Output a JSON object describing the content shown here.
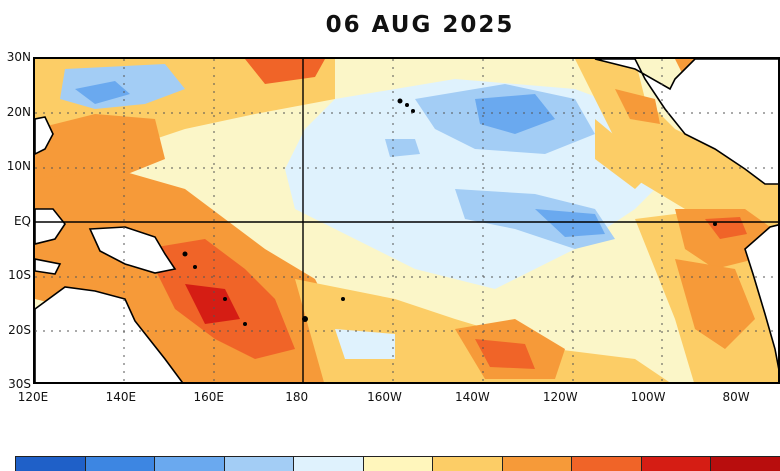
{
  "map": {
    "title": "06 AUG 2025",
    "lat_labels": [
      {
        "text": "30N",
        "lat": 30
      },
      {
        "text": "20N",
        "lat": 20
      },
      {
        "text": "10N",
        "lat": 10
      },
      {
        "text": "EQ",
        "lat": 0
      },
      {
        "text": "10S",
        "lat": -10
      },
      {
        "text": "20S",
        "lat": -20
      },
      {
        "text": "30S",
        "lat": -30
      }
    ],
    "lon_labels": [
      {
        "text": "120E",
        "lon": 120
      },
      {
        "text": "140E",
        "lon": 140
      },
      {
        "text": "160E",
        "lon": 160
      },
      {
        "text": "180",
        "lon": 180
      },
      {
        "text": "160W",
        "lon": 200
      },
      {
        "text": "140W",
        "lon": 220
      },
      {
        "text": "120W",
        "lon": 240
      },
      {
        "text": "100W",
        "lon": 260
      },
      {
        "text": "80W",
        "lon": 280
      }
    ],
    "colors": {
      "background_neutral": "#fbf6c8",
      "land": "#ffffff",
      "coast": "#000000"
    }
  },
  "colorbar": {
    "colors": [
      "#1f60c8",
      "#3d86e2",
      "#6aa9ef",
      "#a3cdf5",
      "#dff2fd",
      "#fff6bc",
      "#fccd66",
      "#f69a39",
      "#f06428",
      "#d51d14",
      "#b80d0d"
    ]
  }
}
